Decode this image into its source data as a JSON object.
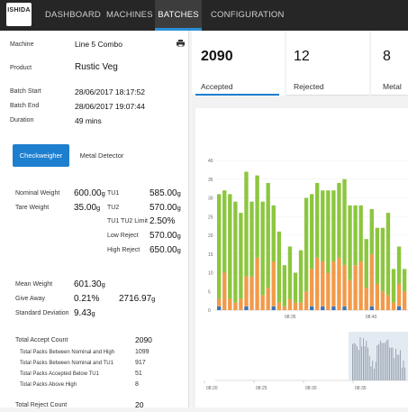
{
  "logo": {
    "text": "ISHIDA"
  },
  "nav": {
    "dashboard": "DASHBOARD",
    "machines": "MACHINES",
    "batches": "BATCHES",
    "configuration": "CONFIGURATION"
  },
  "batch": {
    "machine_label": "Machine",
    "machine": "Line 5 Combo",
    "product_label": "Product",
    "product": "Rustic Veg",
    "start_label": "Batch Start",
    "start": "28/06/2017 18:17:52",
    "end_label": "Batch End",
    "end": "28/06/2017 19:07:44",
    "duration_label": "Duration",
    "duration": "49 mins"
  },
  "tabs": {
    "checkweigher": "Checkweigher",
    "metal_detector": "Metal Detector"
  },
  "weights": {
    "nominal_label": "Nominal Weight",
    "nominal": "600.00",
    "nominal_unit": "g",
    "tare_label": "Tare Weight",
    "tare": "35.00",
    "tare_unit": "g",
    "tu1_label": "TU1",
    "tu1": "585.00",
    "tu1_unit": "g",
    "tu2_label": "TU2",
    "tu2": "570.00",
    "tu2_unit": "g",
    "tu1tu2_label": "TU1 TU2 Limit",
    "tu1tu2": "2.50%",
    "low_label": "Low Reject",
    "low": "570.00",
    "low_unit": "g",
    "high_label": "High Reject",
    "high": "650.00",
    "high_unit": "g"
  },
  "stats": {
    "mean_label": "Mean Weight",
    "mean": "601.30",
    "mean_unit": "g",
    "giveaway_label": "Give Away",
    "giveaway_pct": "0.21%",
    "giveaway_g": "2716.97",
    "giveaway_unit": "g",
    "stddev_label": "Standard Deviation",
    "stddev": "9.43",
    "stddev_unit": "g"
  },
  "counts": {
    "total_accept_label": "Total Accept Count",
    "total_accept": "2090",
    "nominal_high_label": "Total Packs Between Nominal and High",
    "nominal_high": "1099",
    "nominal_tu1_label": "Total Packs Between Nominal and TU1",
    "nominal_tu1": "917",
    "below_tu1_label": "Total Packs Accepted Below TU1",
    "below_tu1": "51",
    "above_high_label": "Total Packs Above High",
    "above_high": "8",
    "total_reject_label": "Total Reject Count",
    "total_reject": "20"
  },
  "cards": [
    {
      "value": "2090",
      "label": "Accepted"
    },
    {
      "value": "12",
      "label": "Rejected"
    },
    {
      "value": "8",
      "label": "Metal"
    }
  ],
  "colors": {
    "green": "#8cc63f",
    "orange": "#f29a4a",
    "blue": "#3b73b9",
    "accent": "#1f7fcf"
  },
  "chart_data": {
    "type": "bar",
    "stacked": true,
    "series_colors": [
      "#3b73b9",
      "#f29a4a",
      "#8cc63f"
    ],
    "ylim": [
      0,
      40
    ],
    "yticks": [
      "0",
      "5",
      "10",
      "15",
      "20",
      "25",
      "30",
      "35",
      "40"
    ],
    "xtick_labels": [
      "08:35",
      "08:40"
    ],
    "bars": [
      [
        1,
        2,
        28
      ],
      [
        0,
        10,
        22
      ],
      [
        0,
        3,
        28
      ],
      [
        0,
        2,
        27
      ],
      [
        0,
        3,
        23
      ],
      [
        1,
        8,
        28
      ],
      [
        0,
        9,
        20
      ],
      [
        0,
        14,
        22
      ],
      [
        0,
        4,
        25
      ],
      [
        0,
        6,
        28
      ],
      [
        1,
        12,
        15
      ],
      [
        0,
        2,
        19
      ],
      [
        0,
        1,
        11
      ],
      [
        0,
        3,
        14
      ],
      [
        0,
        2,
        8
      ],
      [
        0,
        2,
        14
      ],
      [
        0,
        5,
        25
      ],
      [
        1,
        10,
        20
      ],
      [
        0,
        14,
        20
      ],
      [
        1,
        12,
        19
      ],
      [
        0,
        10,
        22
      ],
      [
        1,
        12,
        19
      ],
      [
        0,
        14,
        20
      ],
      [
        1,
        11,
        23
      ],
      [
        0,
        8,
        20
      ],
      [
        0,
        12,
        16
      ],
      [
        0,
        13,
        15
      ],
      [
        0,
        6,
        13
      ],
      [
        1,
        14,
        12
      ],
      [
        0,
        7,
        15
      ],
      [
        0,
        5,
        17
      ],
      [
        0,
        4,
        22
      ],
      [
        0,
        2,
        9
      ],
      [
        1,
        6,
        10
      ],
      [
        0,
        5,
        6
      ]
    ],
    "overview_ticks": [
      "08:20",
      "08:25",
      "08:30",
      "08:35"
    ]
  }
}
